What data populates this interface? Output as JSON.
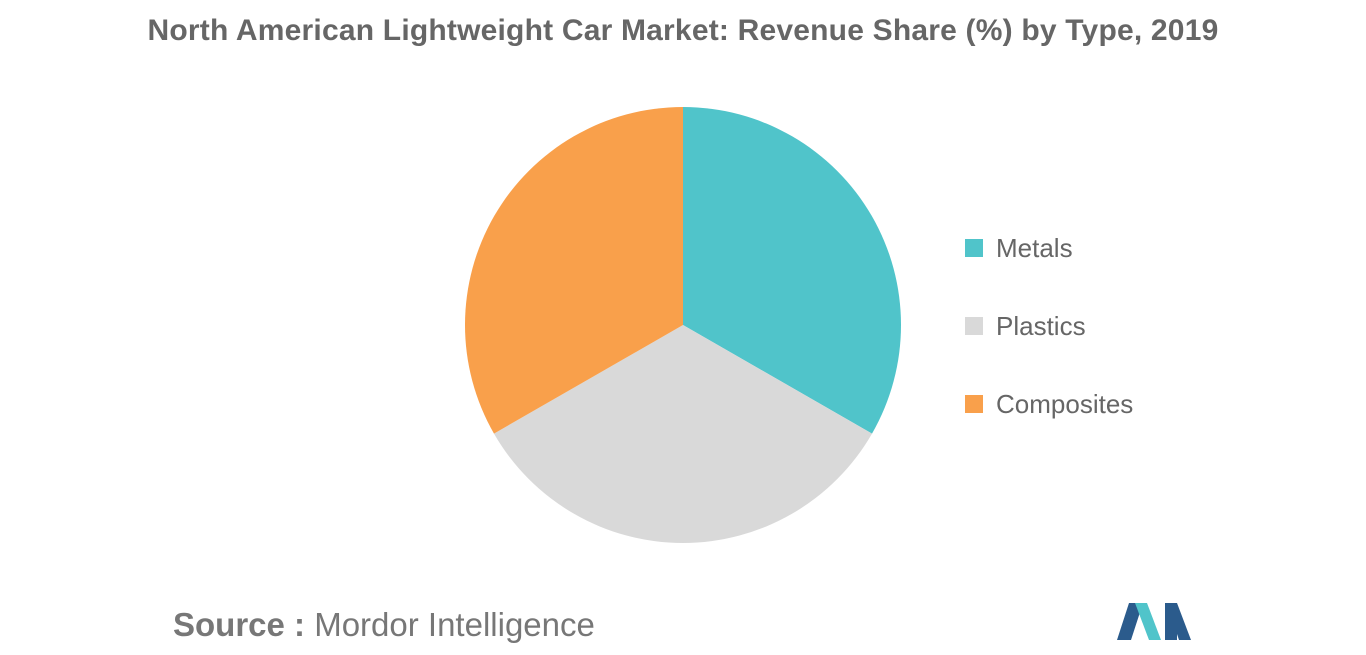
{
  "chart_data": {
    "type": "pie",
    "title": "North American Lightweight Car Market: Revenue Share (%) by Type, 2019",
    "categories": [
      "Metals",
      "Plastics",
      "Composites"
    ],
    "values": [
      33.3,
      33.4,
      33.3
    ],
    "colors": [
      "#50c4ca",
      "#d9d9d9",
      "#f9a04b"
    ],
    "legend_position": "right"
  },
  "source": {
    "key": "Source :",
    "value": "Mordor Intelligence"
  },
  "logo": {
    "colors": [
      "#2b5b8c",
      "#50c4ca"
    ]
  }
}
